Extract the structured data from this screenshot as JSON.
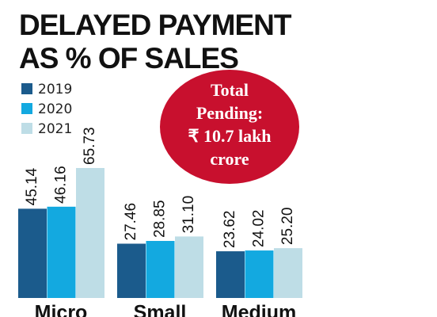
{
  "chart_data": {
    "type": "bar",
    "title": [
      "DELAYED PAYMENT",
      "AS % OF SALES"
    ],
    "categories": [
      "Micro",
      "Small",
      "Medium"
    ],
    "series": [
      {
        "name": "2019",
        "color": "#1b5b8c",
        "values": [
          45.14,
          27.46,
          23.62
        ],
        "value_labels": [
          "45.14",
          "27.46",
          "23.62"
        ]
      },
      {
        "name": "2020",
        "color": "#13a9e0",
        "values": [
          46.16,
          28.85,
          24.02
        ],
        "value_labels": [
          "46.16",
          "28.85",
          "24.02"
        ]
      },
      {
        "name": "2021",
        "color": "#bedde6",
        "values": [
          65.73,
          31.1,
          25.2
        ],
        "value_labels": [
          "65.73",
          "31.10",
          "25.20"
        ]
      }
    ],
    "annotation": [
      "Total",
      "Pending:",
      "₹ 10.7 lakh",
      "crore"
    ],
    "annotation_color": "#c8102e"
  }
}
